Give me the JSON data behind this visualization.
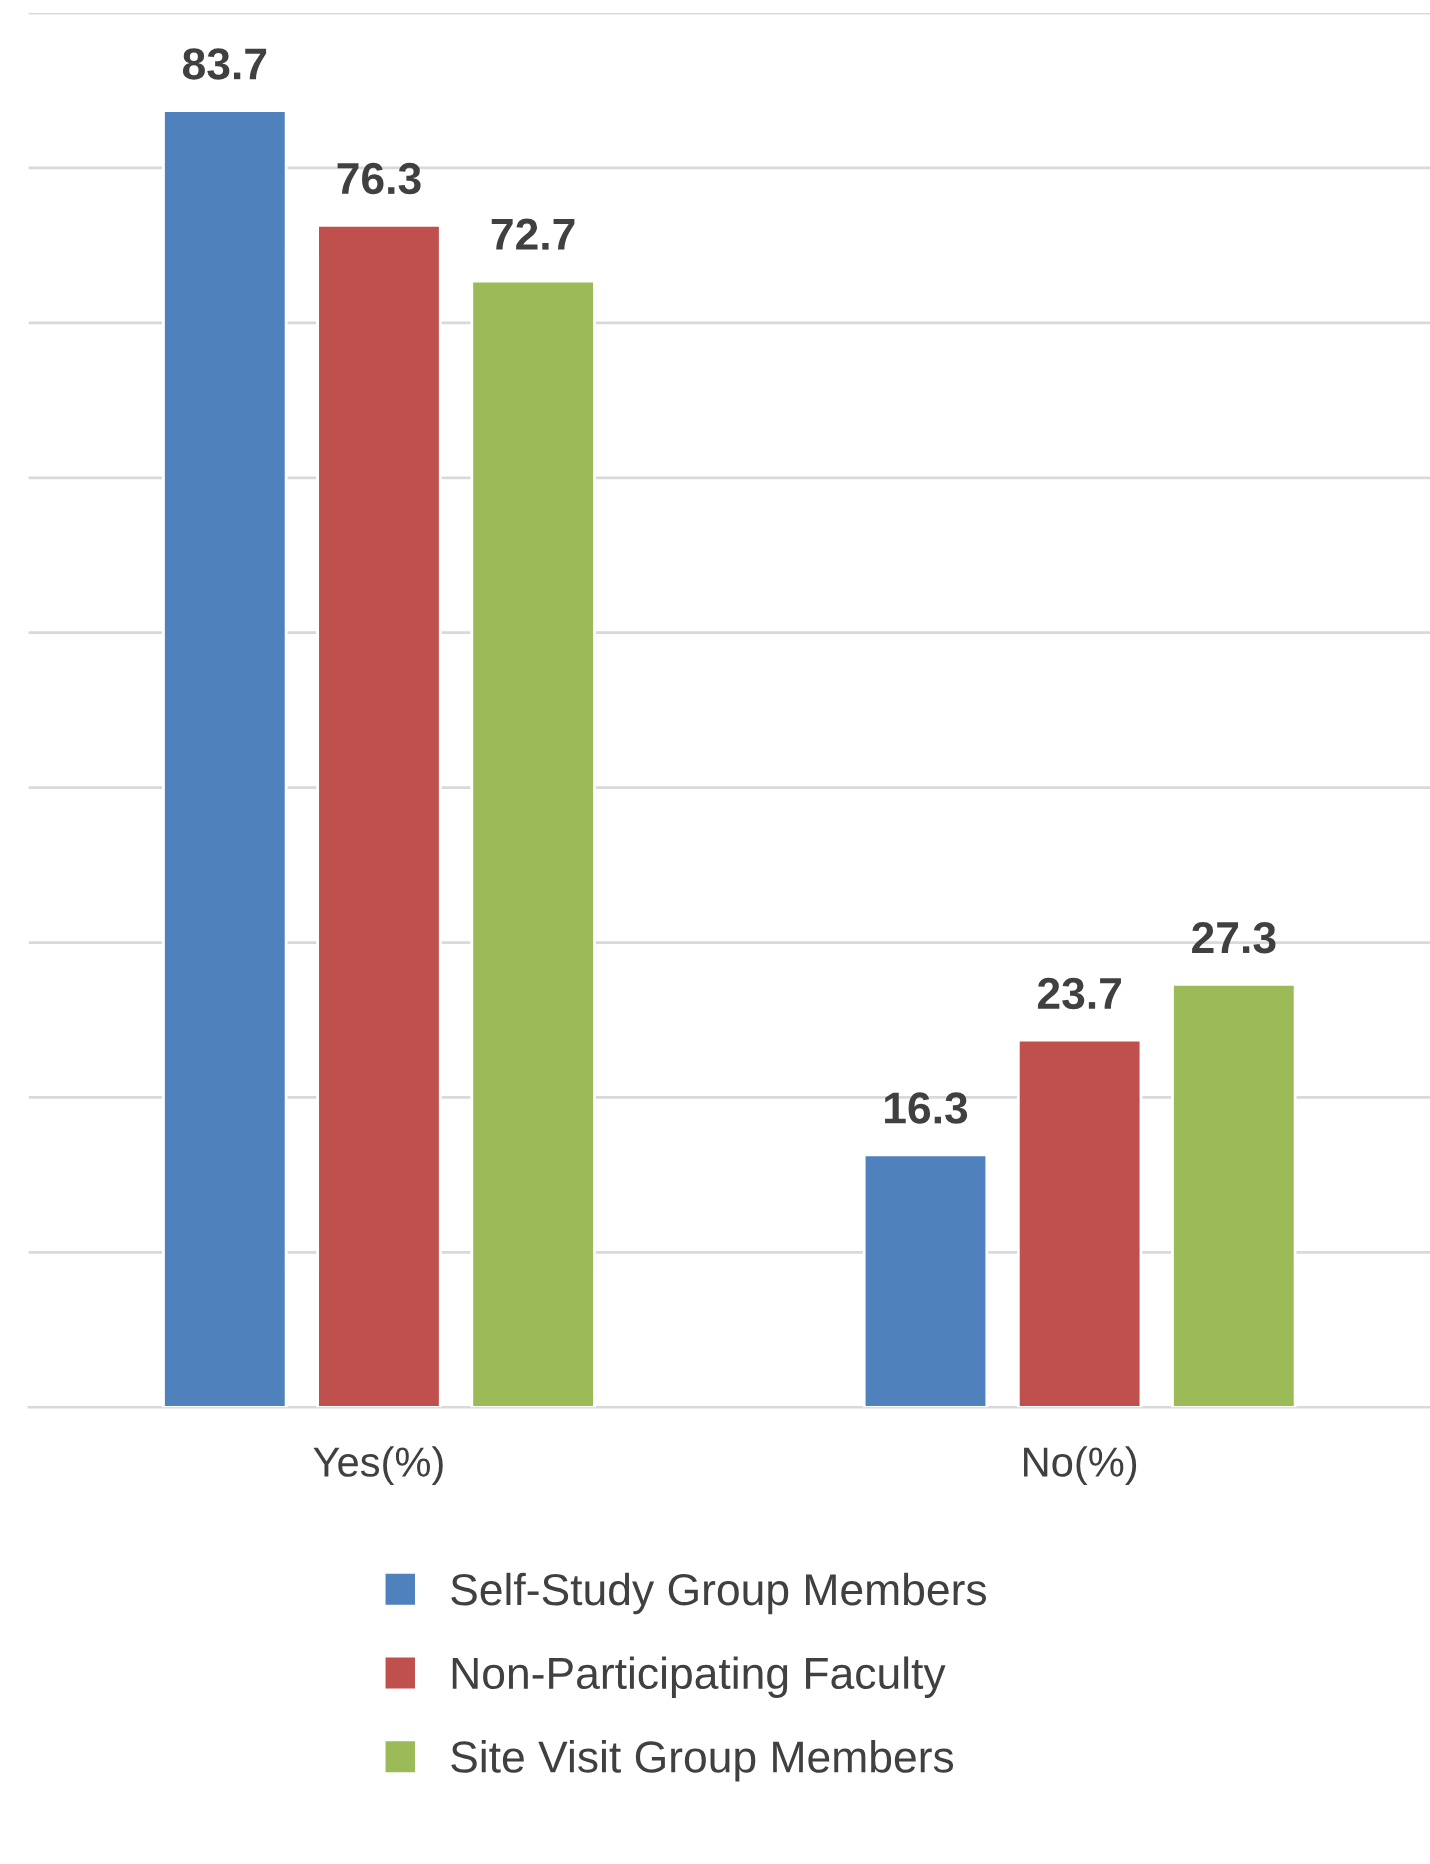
{
  "chart_data": {
    "type": "bar",
    "categories": [
      "Yes(%)",
      "No(%)"
    ],
    "series": [
      {
        "name": "Self-Study Group Members",
        "color": "#4f81bd",
        "values": [
          83.7,
          16.3
        ]
      },
      {
        "name": "Non-Participating Faculty",
        "color": "#c0504d",
        "values": [
          76.3,
          23.7
        ]
      },
      {
        "name": "Site Visit Group Members",
        "color": "#9bbb59",
        "values": [
          72.7,
          27.3
        ]
      }
    ],
    "ylim": [
      0,
      90
    ],
    "yticks": [
      {
        "value": 0,
        "label": null
      },
      {
        "value": 10,
        "label": null
      },
      {
        "value": 20,
        "label": null
      },
      {
        "value": 30,
        "label": null
      },
      {
        "value": 40,
        "label": null
      },
      {
        "value": 50,
        "label": null
      },
      {
        "value": 60,
        "label": null
      },
      {
        "value": 70,
        "label": null
      },
      {
        "value": 80,
        "label": null
      },
      {
        "value": 90,
        "label": null
      }
    ],
    "grid": "y",
    "data_labels": true,
    "legend": "bottom",
    "tick_labels": "x"
  }
}
